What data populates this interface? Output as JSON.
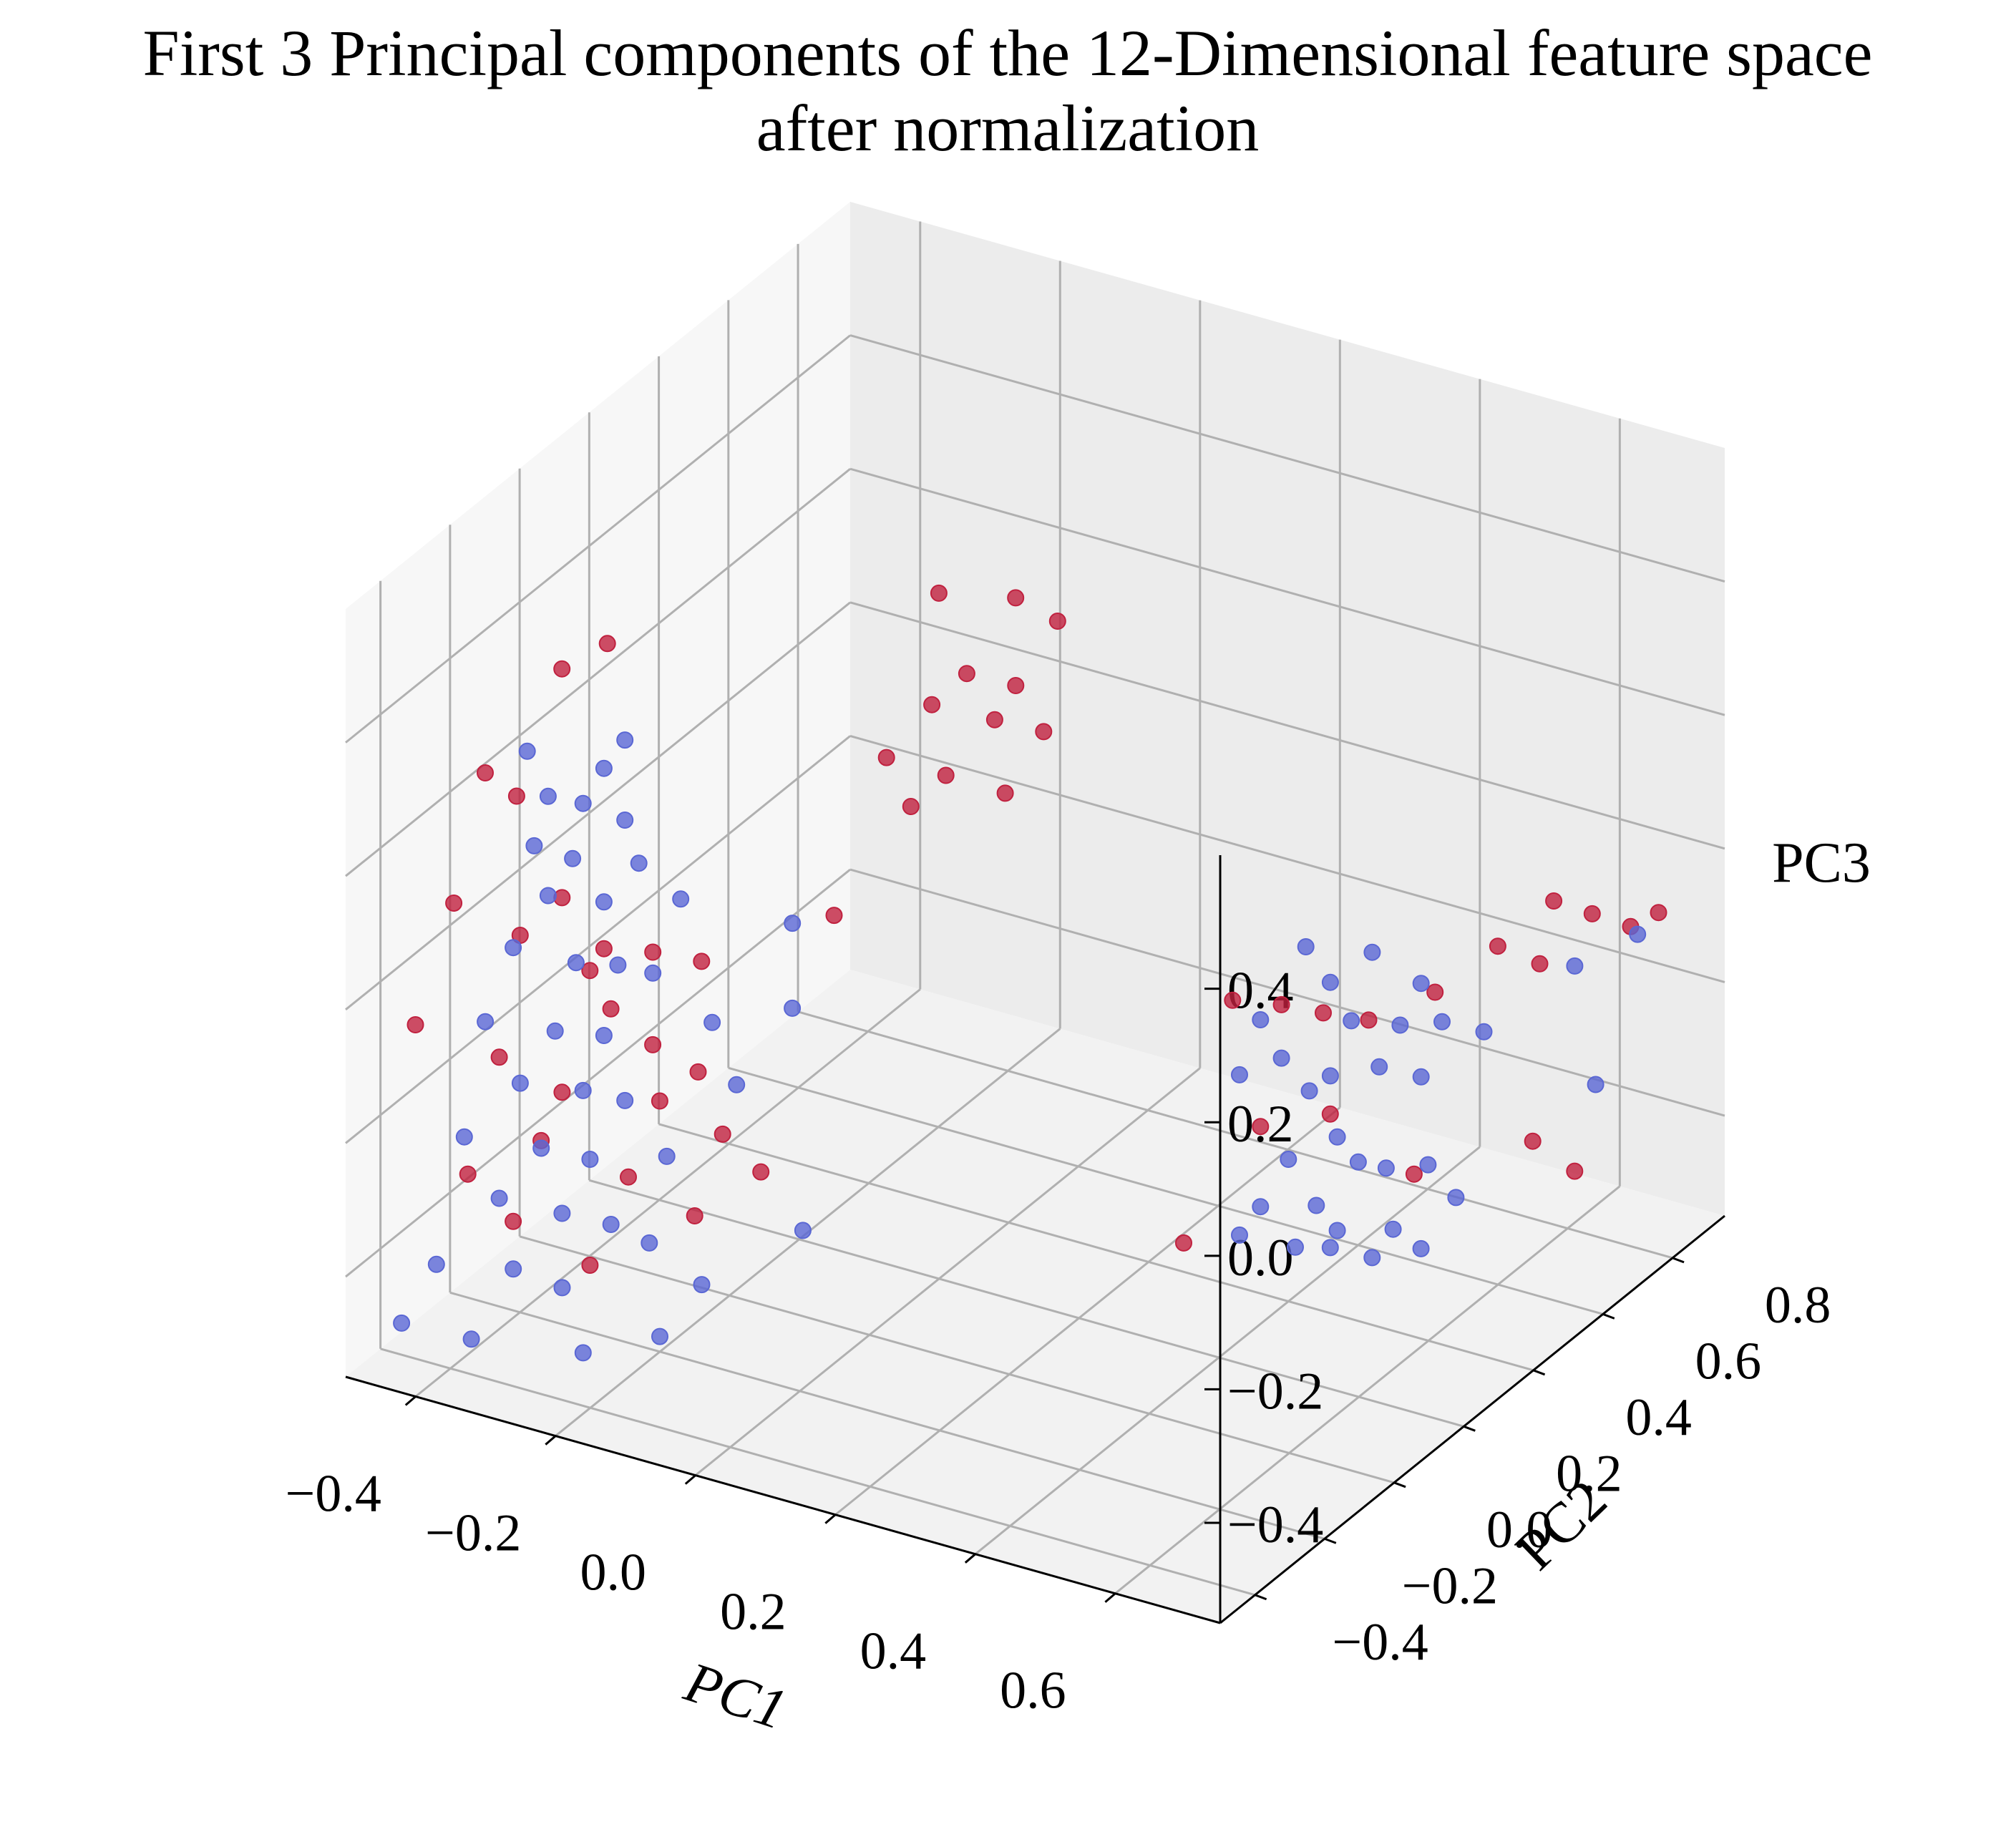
{
  "chart_data": {
    "type": "scatter",
    "title_lines": [
      "First 3 Principal components of the 12-Dimensional feature space",
      "after normalization"
    ],
    "xlabel": "PC1",
    "ylabel": "PC2",
    "zlabel": "PC3",
    "xticks": [
      "−0.4",
      "−0.2",
      "0.0",
      "0.2",
      "0.4",
      "0.6"
    ],
    "yticks": [
      "−0.4",
      "−0.2",
      "0.0",
      "0.2",
      "0.4",
      "0.6",
      "0.8"
    ],
    "zticks": [
      "−0.4",
      "−0.2",
      "0.0",
      "0.2",
      "0.4"
    ],
    "xlim": [
      -0.5,
      0.75
    ],
    "ylim": [
      -0.5,
      0.95
    ],
    "zlim": [
      -0.55,
      0.6
    ],
    "grid": true,
    "colors": {
      "class_a": "#c0213f",
      "class_b": "#5a67d4"
    },
    "series": [
      {
        "color": "#c0213f",
        "points": [
          [
            -0.35,
            -0.18,
            0.42
          ],
          [
            -0.3,
            -0.15,
            0.46
          ],
          [
            -0.4,
            -0.3,
            0.3
          ],
          [
            -0.38,
            -0.25,
            0.25
          ],
          [
            -0.42,
            -0.35,
            0.12
          ],
          [
            -0.33,
            -0.22,
            0.1
          ],
          [
            -0.36,
            -0.28,
            0.06
          ],
          [
            -0.28,
            -0.2,
            0.03
          ],
          [
            -0.25,
            -0.12,
            0.0
          ],
          [
            -0.31,
            -0.18,
            -0.02
          ],
          [
            -0.45,
            -0.4,
            -0.05
          ],
          [
            -0.29,
            -0.16,
            -0.08
          ],
          [
            -0.38,
            -0.3,
            -0.12
          ],
          [
            -0.26,
            -0.1,
            -0.15
          ],
          [
            -0.32,
            -0.24,
            -0.18
          ],
          [
            -0.22,
            -0.05,
            -0.2
          ],
          [
            -0.34,
            -0.26,
            -0.25
          ],
          [
            -0.24,
            -0.12,
            -0.22
          ],
          [
            -0.4,
            -0.35,
            -0.28
          ],
          [
            -0.2,
            -0.02,
            -0.3
          ],
          [
            -0.27,
            -0.15,
            -0.33
          ],
          [
            -0.36,
            -0.3,
            -0.36
          ],
          [
            -0.21,
            -0.08,
            -0.4
          ],
          [
            -0.3,
            -0.2,
            -0.45
          ],
          [
            -0.18,
            0.05,
            -0.38
          ],
          [
            -0.23,
            -0.02,
            -0.05
          ],
          [
            -0.05,
            0.3,
            0.42
          ],
          [
            0.02,
            0.38,
            0.4
          ],
          [
            0.06,
            0.42,
            0.36
          ],
          [
            -0.02,
            0.32,
            0.3
          ],
          [
            0.03,
            0.36,
            0.28
          ],
          [
            -0.06,
            0.3,
            0.25
          ],
          [
            0.0,
            0.36,
            0.22
          ],
          [
            0.05,
            0.4,
            0.2
          ],
          [
            -0.1,
            0.25,
            0.18
          ],
          [
            -0.04,
            0.3,
            0.15
          ],
          [
            0.02,
            0.35,
            0.12
          ],
          [
            -0.08,
            0.28,
            0.1
          ],
          [
            -0.15,
            0.2,
            -0.05
          ],
          [
            0.62,
            0.72,
            -0.02
          ],
          [
            0.66,
            0.75,
            -0.04
          ],
          [
            0.7,
            0.78,
            -0.06
          ],
          [
            0.72,
            0.82,
            -0.05
          ],
          [
            0.55,
            0.7,
            -0.1
          ],
          [
            0.6,
            0.72,
            -0.12
          ],
          [
            0.5,
            0.62,
            -0.15
          ],
          [
            0.38,
            0.42,
            -0.12
          ],
          [
            0.4,
            0.5,
            -0.16
          ],
          [
            0.44,
            0.55,
            -0.18
          ],
          [
            0.34,
            0.36,
            -0.1
          ],
          [
            0.36,
            0.4,
            -0.3
          ],
          [
            0.4,
            0.52,
            -0.32
          ],
          [
            0.48,
            0.6,
            -0.42
          ],
          [
            0.58,
            0.74,
            -0.4
          ],
          [
            0.62,
            0.78,
            -0.45
          ],
          [
            0.3,
            0.3,
            -0.45
          ]
        ]
      },
      {
        "color": "#5a67d4",
        "points": [
          [
            -0.28,
            -0.2,
            0.3
          ],
          [
            -0.3,
            -0.22,
            0.25
          ],
          [
            -0.26,
            -0.18,
            0.22
          ],
          [
            -0.34,
            -0.28,
            0.2
          ],
          [
            -0.3,
            -0.25,
            0.18
          ],
          [
            -0.25,
            -0.16,
            0.15
          ],
          [
            -0.33,
            -0.26,
            0.12
          ],
          [
            -0.28,
            -0.2,
            0.1
          ],
          [
            -0.22,
            -0.1,
            0.08
          ],
          [
            -0.36,
            -0.3,
            0.05
          ],
          [
            -0.3,
            -0.24,
            0.02
          ],
          [
            -0.27,
            -0.18,
            0.0
          ],
          [
            -0.24,
            -0.14,
            -0.02
          ],
          [
            -0.38,
            -0.34,
            -0.05
          ],
          [
            -0.32,
            -0.26,
            -0.08
          ],
          [
            -0.28,
            -0.2,
            -0.1
          ],
          [
            -0.2,
            -0.05,
            -0.12
          ],
          [
            -0.35,
            -0.3,
            -0.15
          ],
          [
            -0.3,
            -0.22,
            -0.18
          ],
          [
            -0.26,
            -0.18,
            -0.2
          ],
          [
            -0.4,
            -0.36,
            -0.22
          ],
          [
            -0.33,
            -0.28,
            -0.25
          ],
          [
            -0.29,
            -0.22,
            -0.28
          ],
          [
            -0.23,
            -0.12,
            -0.3
          ],
          [
            -0.18,
            -0.02,
            -0.22
          ],
          [
            -0.37,
            -0.32,
            -0.32
          ],
          [
            -0.31,
            -0.26,
            -0.35
          ],
          [
            -0.27,
            -0.2,
            -0.38
          ],
          [
            -0.42,
            -0.4,
            -0.4
          ],
          [
            -0.35,
            -0.32,
            -0.42
          ],
          [
            -0.3,
            -0.28,
            -0.45
          ],
          [
            -0.24,
            -0.15,
            -0.42
          ],
          [
            -0.2,
            -0.08,
            -0.5
          ],
          [
            -0.45,
            -0.44,
            -0.48
          ],
          [
            -0.39,
            -0.36,
            -0.52
          ],
          [
            -0.28,
            -0.26,
            -0.55
          ],
          [
            -0.22,
            -0.16,
            -0.55
          ],
          [
            -0.12,
            0.05,
            -0.45
          ],
          [
            -0.16,
            0.1,
            -0.15
          ],
          [
            -0.14,
            0.06,
            0.0
          ],
          [
            -0.34,
            -0.3,
            0.35
          ],
          [
            -0.32,
            -0.28,
            0.28
          ],
          [
            -0.26,
            -0.18,
            0.34
          ],
          [
            0.4,
            0.45,
            -0.04
          ],
          [
            0.46,
            0.52,
            -0.06
          ],
          [
            0.42,
            0.48,
            -0.1
          ],
          [
            0.5,
            0.58,
            -0.12
          ],
          [
            0.36,
            0.4,
            -0.14
          ],
          [
            0.44,
            0.5,
            -0.16
          ],
          [
            0.48,
            0.56,
            -0.18
          ],
          [
            0.38,
            0.42,
            -0.2
          ],
          [
            0.52,
            0.6,
            -0.18
          ],
          [
            0.34,
            0.38,
            -0.22
          ],
          [
            0.42,
            0.48,
            -0.24
          ],
          [
            0.46,
            0.54,
            -0.24
          ],
          [
            0.4,
            0.46,
            -0.26
          ],
          [
            0.5,
            0.58,
            -0.26
          ],
          [
            0.56,
            0.64,
            -0.2
          ],
          [
            0.64,
            0.74,
            -0.12
          ],
          [
            0.7,
            0.8,
            -0.08
          ],
          [
            0.66,
            0.76,
            -0.3
          ],
          [
            0.42,
            0.5,
            -0.34
          ],
          [
            0.38,
            0.44,
            -0.36
          ],
          [
            0.44,
            0.52,
            -0.38
          ],
          [
            0.36,
            0.4,
            -0.42
          ],
          [
            0.46,
            0.56,
            -0.4
          ],
          [
            0.4,
            0.48,
            -0.44
          ],
          [
            0.5,
            0.6,
            -0.4
          ],
          [
            0.34,
            0.38,
            -0.46
          ],
          [
            0.42,
            0.5,
            -0.48
          ],
          [
            0.38,
            0.46,
            -0.5
          ],
          [
            0.52,
            0.64,
            -0.46
          ],
          [
            0.46,
            0.58,
            -0.5
          ],
          [
            0.4,
            0.52,
            -0.52
          ],
          [
            0.44,
            0.56,
            -0.54
          ],
          [
            0.48,
            0.62,
            -0.54
          ]
        ]
      }
    ]
  }
}
